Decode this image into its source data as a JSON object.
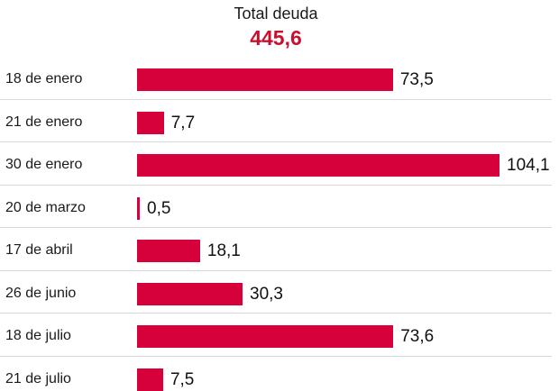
{
  "header": {
    "title": "Total deuda",
    "total": "445,6"
  },
  "colors": {
    "bar": "#d6003a",
    "total_text": "#c8102e",
    "divider": "#d9d9d9"
  },
  "chart_data": {
    "type": "bar",
    "orientation": "horizontal",
    "title": "Total deuda",
    "subtitle": "445,6",
    "categories": [
      "18 de enero",
      "21 de enero",
      "30 de enero",
      "20 de marzo",
      "17 de abril",
      "26 de junio",
      "18 de julio",
      "21 de julio"
    ],
    "values": [
      73.5,
      7.7,
      104.1,
      0.5,
      18.1,
      30.3,
      73.6,
      7.5
    ],
    "value_labels": [
      "73,5",
      "7,7",
      "104,1",
      "0,5",
      "18,1",
      "30,3",
      "73,6",
      "7,5"
    ],
    "xlim": [
      0,
      104.1
    ],
    "grid": false,
    "xlabel": "",
    "ylabel": ""
  }
}
